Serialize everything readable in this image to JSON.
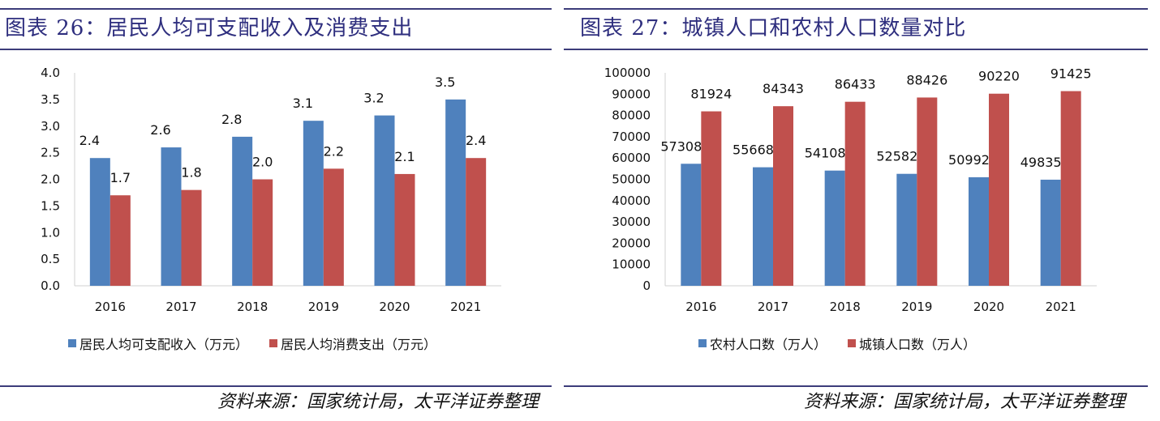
{
  "colors": {
    "blue": "#4f81bd",
    "red": "#c0504d",
    "title": "#2e2e7e"
  },
  "left": {
    "title": "图表 26：居民人均可支配收入及消费支出",
    "source": "资料来源：国家统计局，太平洋证券整理"
  },
  "right": {
    "title": "图表 27：城镇人口和农村人口数量对比",
    "source": "资料来源：国家统计局，太平洋证券整理"
  },
  "chart_data": [
    {
      "type": "bar",
      "categories": [
        "2016",
        "2017",
        "2018",
        "2019",
        "2020",
        "2021"
      ],
      "series": [
        {
          "name": "居民人均可支配收入（万元）",
          "values": [
            2.4,
            2.6,
            2.8,
            3.1,
            3.2,
            3.5
          ],
          "labels": [
            "2.4",
            "2.6",
            "2.8",
            "3.1",
            "3.2",
            "3.5"
          ],
          "color": "#4f81bd"
        },
        {
          "name": "居民人均消费支出（万元）",
          "values": [
            1.7,
            1.8,
            2.0,
            2.2,
            2.1,
            2.4
          ],
          "labels": [
            "1.7",
            "1.8",
            "2.0",
            "2.2",
            "2.1",
            "2.4"
          ],
          "color": "#c0504d"
        }
      ],
      "ylim": [
        0,
        4.0
      ],
      "yticks": [
        "0.0",
        "0.5",
        "1.0",
        "1.5",
        "2.0",
        "2.5",
        "3.0",
        "3.5",
        "4.0"
      ],
      "legend": "bottom",
      "grid": false
    },
    {
      "type": "bar",
      "categories": [
        "2016",
        "2017",
        "2018",
        "2019",
        "2020",
        "2021"
      ],
      "series": [
        {
          "name": "农村人口数（万人）",
          "values": [
            57308,
            55668,
            54108,
            52582,
            50992,
            49835
          ],
          "labels": [
            "57308",
            "55668",
            "54108",
            "52582",
            "50992",
            "49835"
          ],
          "color": "#4f81bd"
        },
        {
          "name": "城镇人口数（万人）",
          "values": [
            81924,
            84343,
            86433,
            88426,
            90220,
            91425
          ],
          "labels": [
            "81924",
            "84343",
            "86433",
            "88426",
            "90220",
            "91425"
          ],
          "color": "#c0504d"
        }
      ],
      "ylim": [
        0,
        100000
      ],
      "yticks": [
        "0",
        "10000",
        "20000",
        "30000",
        "40000",
        "50000",
        "60000",
        "70000",
        "80000",
        "90000",
        "100000"
      ],
      "legend": "bottom",
      "grid": false
    }
  ]
}
